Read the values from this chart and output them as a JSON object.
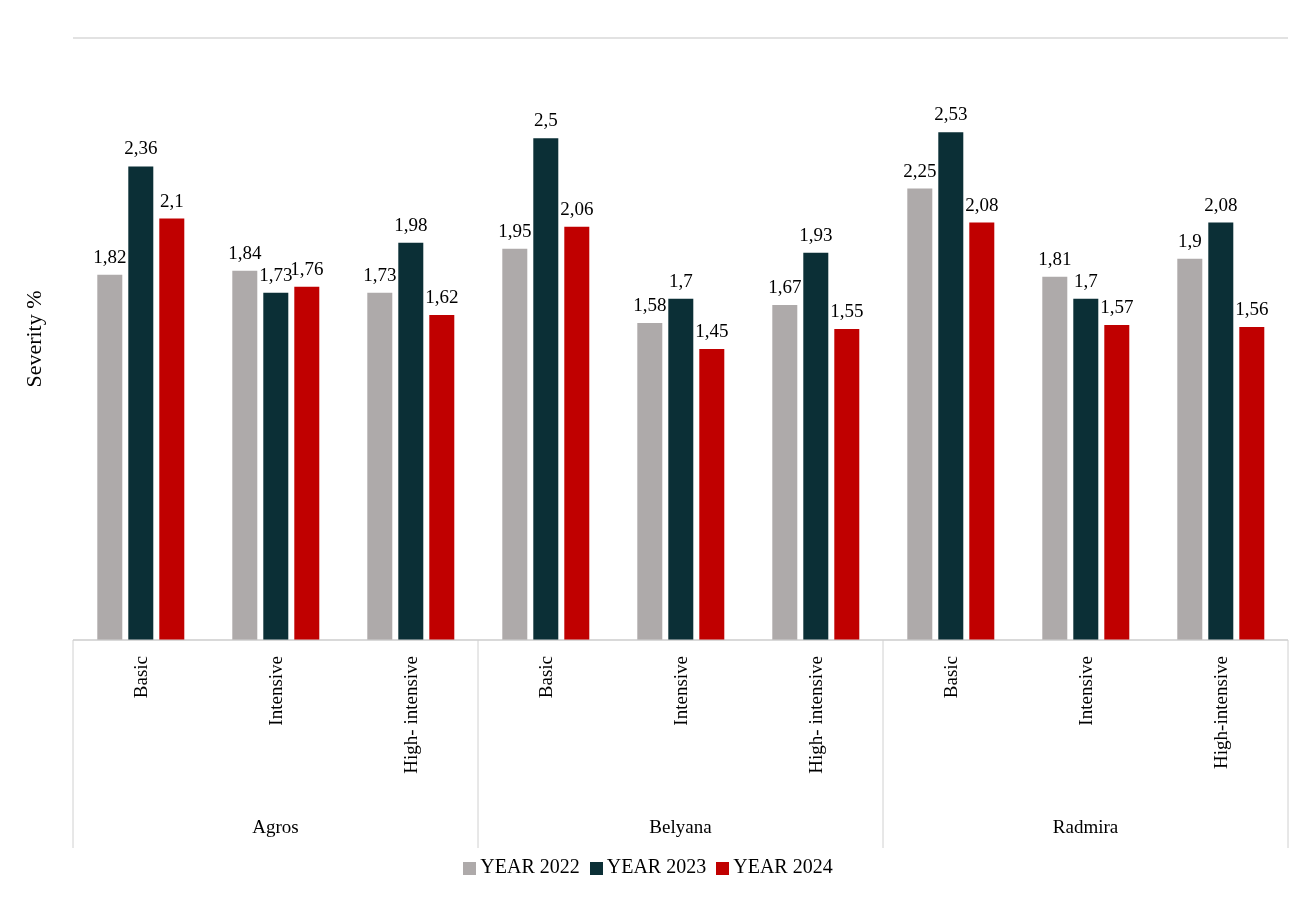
{
  "chart_data": {
    "type": "bar",
    "ylabel": "Severity %",
    "categories": [
      "Basic",
      "Intensive",
      "High- intensive",
      "Basic",
      "Intensive",
      "High- intensive",
      "Basic",
      "Intensive",
      "High-intensive"
    ],
    "annotations": [
      "Agros",
      "Belyana",
      "Radmira"
    ],
    "series": [
      {
        "name": "YEAR 2022",
        "color": "#aeaaaa",
        "values": [
          1.82,
          1.84,
          1.73,
          1.95,
          1.58,
          1.67,
          2.25,
          1.81,
          1.9
        ],
        "value_labels": [
          "1,82",
          "1,84",
          "1,73",
          "1,95",
          "1,58",
          "1,67",
          "2,25",
          "1,81",
          "1,9"
        ]
      },
      {
        "name": "YEAR 2023",
        "color": "#0b2f36",
        "values": [
          2.36,
          1.73,
          1.98,
          2.5,
          1.7,
          1.93,
          2.53,
          1.7,
          2.08
        ],
        "value_labels": [
          "2,36",
          "1,73",
          "1,98",
          "2,5",
          "1,7",
          "1,93",
          "2,53",
          "1,7",
          "2,08"
        ]
      },
      {
        "name": "YEAR 2024",
        "color": "#c00000",
        "values": [
          2.1,
          1.76,
          1.62,
          2.06,
          1.45,
          1.55,
          2.08,
          1.57,
          1.56
        ],
        "value_labels": [
          "2,1",
          "1,76",
          "1,62",
          "2,06",
          "1,45",
          "1,55",
          "2,08",
          "1,57",
          "1,56"
        ]
      }
    ],
    "ylim": [
      0,
      3
    ],
    "tick_labels": "x",
    "grid": "y",
    "legend": "bottom"
  }
}
